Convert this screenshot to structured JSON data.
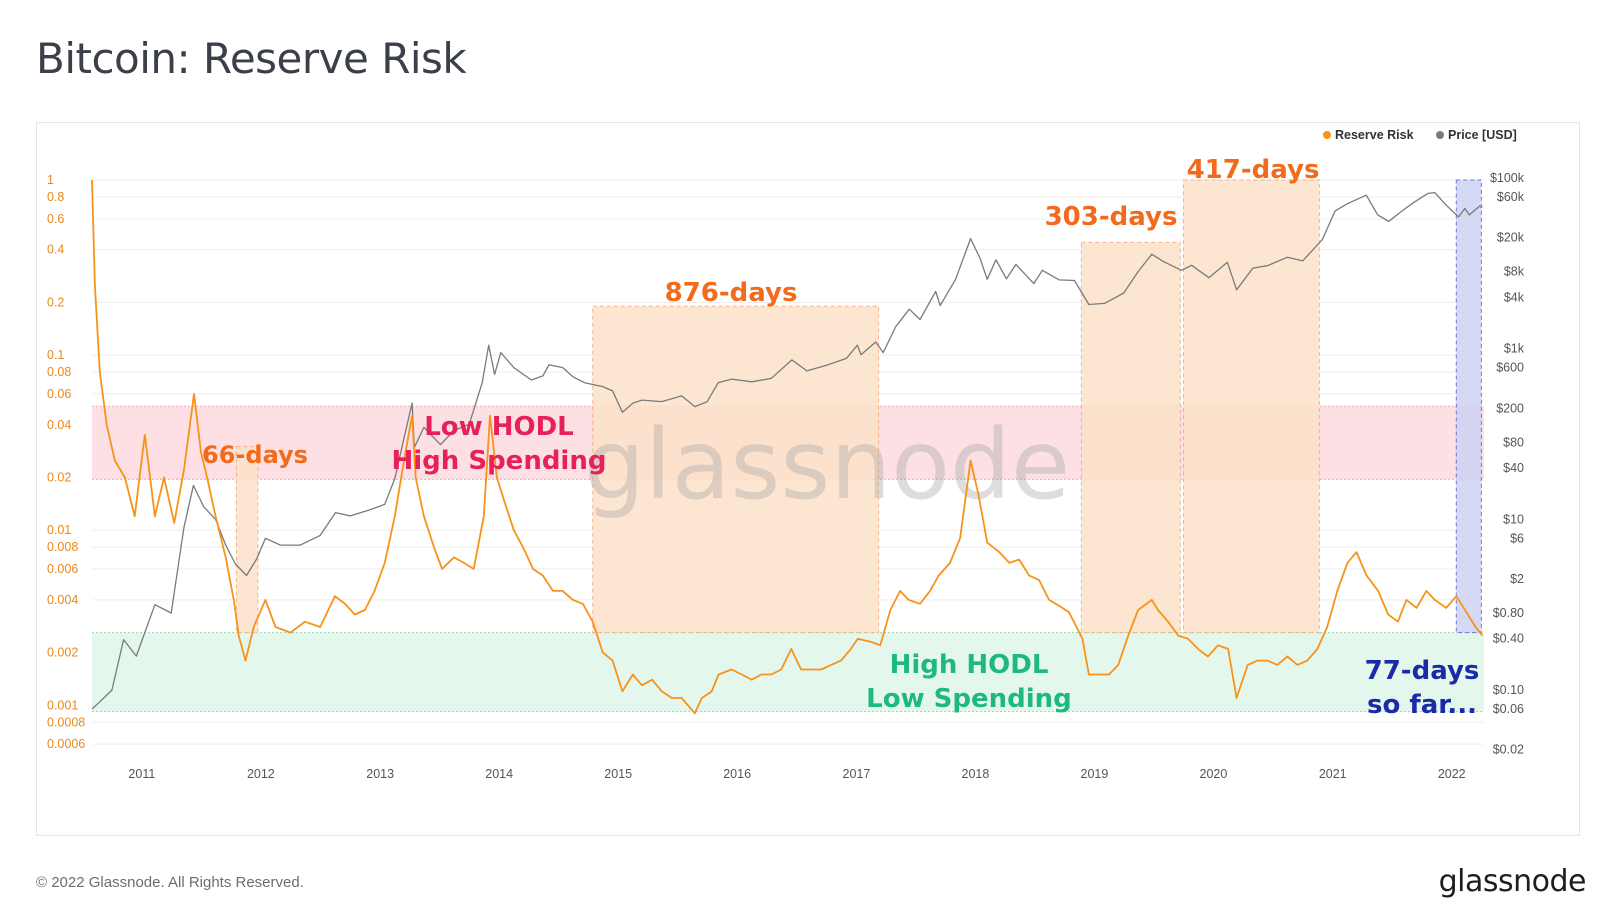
{
  "page": {
    "title": "Bitcoin: Reserve Risk",
    "copyright": "© 2022 Glassnode. All Rights Reserved.",
    "brand": "glassnode",
    "watermark": "glassnode"
  },
  "colors": {
    "reserve_risk": "#f7931a",
    "price": "#7a7a7a",
    "label_orange": "#f26a1b",
    "label_pink": "#e8205a",
    "label_green": "#1db97e",
    "label_blue": "#1b2aa6",
    "band_red": "#fbdadf",
    "band_green": "#dff6ea",
    "box_orange": "#fde2c9",
    "box_blue": "#cfd3f5"
  },
  "chart_data": {
    "type": "line",
    "title": "Bitcoin: Reserve Risk",
    "x_range": [
      "2010-08-01",
      "2022-04-10"
    ],
    "x_ticks": [
      "2011",
      "2012",
      "2013",
      "2014",
      "2015",
      "2016",
      "2017",
      "2018",
      "2019",
      "2020",
      "2021",
      "2022"
    ],
    "y_left": {
      "scale": "log",
      "range": [
        0.0005,
        1.25
      ],
      "tick_values": [
        1,
        0.8,
        0.6,
        0.4,
        0.2,
        0.1,
        0.08,
        0.06,
        0.04,
        0.02,
        0.01,
        0.008,
        0.006,
        0.004,
        0.002,
        0.001,
        0.0008,
        0.0006
      ],
      "tick_labels": [
        "1",
        "0.8",
        "0.6",
        "0.4",
        "0.2",
        "0.1",
        "0.08",
        "0.06",
        "0.04",
        "0.02",
        "0.01",
        "0.008",
        "0.006",
        "0.004",
        "0.002",
        "0.001",
        "0.0008",
        "0.0006"
      ]
    },
    "y_right": {
      "scale": "log",
      "range": [
        0.016,
        150000
      ],
      "tick_values": [
        100000,
        60000,
        20000,
        8000,
        4000,
        1000,
        600,
        200,
        80,
        40,
        10,
        6,
        2,
        0.8,
        0.4,
        0.1,
        0.06,
        0.02
      ],
      "tick_labels": [
        "$100k",
        "$60k",
        "$20k",
        "$8k",
        "$4k",
        "$1k",
        "$600",
        "$200",
        "$80",
        "$40",
        "$10",
        "$6",
        "$2",
        "$0.80",
        "$0.40",
        "$0.10",
        "$0.06",
        "$0.02"
      ]
    },
    "legend": {
      "position": "top-right",
      "entries": [
        {
          "name": "Reserve Risk",
          "color": "#f7931a"
        },
        {
          "name": "Price [USD]",
          "color": "#7a7a7a"
        }
      ]
    },
    "series": [
      {
        "name": "Reserve Risk",
        "axis": "left",
        "x": [
          "2010-08-01",
          "2010-08-10",
          "2010-08-25",
          "2010-09-15",
          "2010-10-10",
          "2010-11-10",
          "2010-12-10",
          "2011-01-10",
          "2011-02-10",
          "2011-03-10",
          "2011-04-10",
          "2011-05-10",
          "2011-06-01",
          "2011-06-10",
          "2011-07-01",
          "2011-07-20",
          "2011-08-15",
          "2011-09-15",
          "2011-10-10",
          "2011-10-25",
          "2011-11-15",
          "2011-12-10",
          "2012-01-15",
          "2012-02-15",
          "2012-04-01",
          "2012-05-15",
          "2012-07-01",
          "2012-08-15",
          "2012-09-15",
          "2012-10-15",
          "2012-11-15",
          "2012-12-15",
          "2013-01-15",
          "2013-02-15",
          "2013-03-15",
          "2013-04-09",
          "2013-04-20",
          "2013-05-15",
          "2013-06-15",
          "2013-07-10",
          "2013-08-15",
          "2013-09-15",
          "2013-10-15",
          "2013-11-15",
          "2013-12-04",
          "2013-12-25",
          "2014-01-15",
          "2014-02-15",
          "2014-03-15",
          "2014-04-15",
          "2014-05-15",
          "2014-06-15",
          "2014-07-15",
          "2014-08-15",
          "2014-09-15",
          "2014-10-15",
          "2014-11-15",
          "2014-12-15",
          "2015-01-14",
          "2015-02-15",
          "2015-03-15",
          "2015-04-15",
          "2015-05-15",
          "2015-06-15",
          "2015-07-15",
          "2015-08-24",
          "2015-09-15",
          "2015-10-15",
          "2015-11-05",
          "2015-12-15",
          "2016-01-15",
          "2016-02-15",
          "2016-03-15",
          "2016-04-15",
          "2016-05-15",
          "2016-06-15",
          "2016-07-15",
          "2016-08-15",
          "2016-09-15",
          "2016-10-15",
          "2016-11-15",
          "2016-12-15",
          "2017-01-05",
          "2017-02-15",
          "2017-03-15",
          "2017-04-15",
          "2017-05-15",
          "2017-06-10",
          "2017-07-15",
          "2017-08-15",
          "2017-09-10",
          "2017-10-15",
          "2017-11-15",
          "2017-12-17",
          "2018-01-10",
          "2018-02-06",
          "2018-03-15",
          "2018-04-15",
          "2018-05-15",
          "2018-06-15",
          "2018-07-15",
          "2018-08-15",
          "2018-09-15",
          "2018-10-15",
          "2018-11-25",
          "2018-12-15",
          "2019-01-15",
          "2019-02-15",
          "2019-03-15",
          "2019-04-15",
          "2019-05-15",
          "2019-06-26",
          "2019-07-15",
          "2019-08-15",
          "2019-09-15",
          "2019-10-15",
          "2019-11-15",
          "2019-12-15",
          "2020-01-15",
          "2020-02-15",
          "2020-03-12",
          "2020-04-15",
          "2020-05-15",
          "2020-06-15",
          "2020-07-15",
          "2020-08-15",
          "2020-09-15",
          "2020-10-15",
          "2020-11-15",
          "2020-12-15",
          "2021-01-15",
          "2021-02-15",
          "2021-03-15",
          "2021-04-15",
          "2021-05-20",
          "2021-06-20",
          "2021-07-20",
          "2021-08-15",
          "2021-09-15",
          "2021-10-15",
          "2021-11-10",
          "2021-12-15",
          "2022-01-15",
          "2022-02-15",
          "2022-03-15",
          "2022-04-05"
        ],
        "y": [
          1.0,
          0.25,
          0.08,
          0.04,
          0.025,
          0.02,
          0.012,
          0.035,
          0.012,
          0.02,
          0.011,
          0.022,
          0.045,
          0.06,
          0.028,
          0.02,
          0.012,
          0.007,
          0.004,
          0.0025,
          0.0018,
          0.0028,
          0.004,
          0.0028,
          0.0026,
          0.003,
          0.0028,
          0.0042,
          0.0038,
          0.0033,
          0.0035,
          0.0045,
          0.0065,
          0.012,
          0.025,
          0.045,
          0.02,
          0.012,
          0.008,
          0.006,
          0.007,
          0.0065,
          0.006,
          0.012,
          0.045,
          0.02,
          0.015,
          0.01,
          0.008,
          0.006,
          0.0055,
          0.0045,
          0.0045,
          0.004,
          0.0038,
          0.003,
          0.002,
          0.0018,
          0.0012,
          0.0015,
          0.0013,
          0.0014,
          0.0012,
          0.0011,
          0.0011,
          0.0009,
          0.0011,
          0.0012,
          0.0015,
          0.0016,
          0.0015,
          0.0014,
          0.0015,
          0.0015,
          0.0016,
          0.0021,
          0.0016,
          0.0016,
          0.0016,
          0.0017,
          0.0018,
          0.0021,
          0.0024,
          0.0023,
          0.0022,
          0.0035,
          0.0045,
          0.004,
          0.0038,
          0.0045,
          0.0055,
          0.0065,
          0.009,
          0.025,
          0.016,
          0.0085,
          0.0075,
          0.0065,
          0.0068,
          0.0055,
          0.0052,
          0.004,
          0.0037,
          0.0034,
          0.0024,
          0.0015,
          0.0015,
          0.0015,
          0.0017,
          0.0025,
          0.0035,
          0.004,
          0.0035,
          0.003,
          0.0025,
          0.0024,
          0.0021,
          0.0019,
          0.0022,
          0.0021,
          0.0011,
          0.0017,
          0.0018,
          0.0018,
          0.0017,
          0.0019,
          0.0017,
          0.0018,
          0.0021,
          0.0028,
          0.0045,
          0.0065,
          0.0075,
          0.0055,
          0.0045,
          0.0033,
          0.003,
          0.004,
          0.0036,
          0.0045,
          0.004,
          0.0036,
          0.0042,
          0.0034,
          0.0028,
          0.0025
        ]
      },
      {
        "name": "Price [USD]",
        "axis": "right",
        "x": [
          "2010-08-01",
          "2010-08-20",
          "2010-10-01",
          "2010-11-06",
          "2010-12-15",
          "2011-02-10",
          "2011-04-01",
          "2011-05-10",
          "2011-06-08",
          "2011-07-10",
          "2011-08-15",
          "2011-09-15",
          "2011-10-15",
          "2011-11-18",
          "2011-12-20",
          "2012-01-15",
          "2012-03-01",
          "2012-05-01",
          "2012-07-01",
          "2012-08-17",
          "2012-10-01",
          "2012-12-01",
          "2013-01-15",
          "2013-02-15",
          "2013-03-15",
          "2013-04-09",
          "2013-04-16",
          "2013-05-15",
          "2013-07-05",
          "2013-08-15",
          "2013-10-01",
          "2013-11-10",
          "2013-11-30",
          "2013-12-18",
          "2014-01-06",
          "2014-02-15",
          "2014-04-10",
          "2014-05-15",
          "2014-06-03",
          "2014-07-15",
          "2014-08-15",
          "2014-09-20",
          "2014-11-15",
          "2014-12-15",
          "2015-01-14",
          "2015-02-15",
          "2015-03-15",
          "2015-05-15",
          "2015-07-15",
          "2015-08-24",
          "2015-10-01",
          "2015-11-04",
          "2015-12-15",
          "2016-02-15",
          "2016-04-15",
          "2016-06-17",
          "2016-08-02",
          "2016-10-01",
          "2016-12-01",
          "2017-01-04",
          "2017-01-15",
          "2017-03-01",
          "2017-03-24",
          "2017-05-01",
          "2017-06-12",
          "2017-07-15",
          "2017-09-01",
          "2017-09-15",
          "2017-11-01",
          "2017-12-17",
          "2018-01-15",
          "2018-02-06",
          "2018-03-05",
          "2018-04-06",
          "2018-05-05",
          "2018-06-29",
          "2018-07-25",
          "2018-09-15",
          "2018-11-01",
          "2018-12-15",
          "2019-02-01",
          "2019-04-01",
          "2019-05-15",
          "2019-06-26",
          "2019-08-01",
          "2019-09-25",
          "2019-10-26",
          "2019-12-18",
          "2020-02-13",
          "2020-03-12",
          "2020-05-01",
          "2020-06-15",
          "2020-08-15",
          "2020-10-01",
          "2020-11-30",
          "2021-01-08",
          "2021-02-15",
          "2021-04-14",
          "2021-05-19",
          "2021-06-22",
          "2021-08-01",
          "2021-09-07",
          "2021-10-20",
          "2021-11-10",
          "2021-12-15",
          "2022-01-22",
          "2022-02-10",
          "2022-02-24",
          "2022-03-28",
          "2022-04-05"
        ],
        "y": [
          0.06,
          0.07,
          0.1,
          0.39,
          0.25,
          1,
          0.8,
          8,
          25,
          14,
          10,
          5,
          3,
          2.2,
          3.5,
          6,
          5,
          5,
          6.5,
          12,
          11,
          13,
          15,
          30,
          90,
          230,
          70,
          120,
          75,
          110,
          130,
          400,
          1100,
          500,
          900,
          600,
          430,
          480,
          650,
          600,
          470,
          400,
          360,
          320,
          180,
          230,
          250,
          240,
          280,
          210,
          240,
          400,
          440,
          410,
          450,
          740,
          550,
          640,
          770,
          1100,
          850,
          1200,
          900,
          1800,
          2900,
          2200,
          4700,
          3200,
          6500,
          19500,
          11500,
          6500,
          11000,
          6600,
          9700,
          5800,
          8300,
          6400,
          6300,
          3300,
          3400,
          4500,
          8000,
          12800,
          10500,
          8300,
          9500,
          6800,
          10300,
          4900,
          8800,
          9400,
          11800,
          10700,
          19000,
          41000,
          50000,
          63000,
          37000,
          31000,
          41000,
          52000,
          66000,
          67500,
          48000,
          35000,
          44000,
          37000,
          47000,
          45000
        ]
      }
    ],
    "annotations": {
      "bands": [
        {
          "name": "Low HODL High Spending",
          "axis": "left",
          "y_from": 0.0195,
          "y_to": 0.051
        },
        {
          "name": "High HODL Low Spending",
          "axis": "left",
          "y_from": 0.00092,
          "y_to": 0.0026
        }
      ],
      "boxes": [
        {
          "label": "66-days",
          "x_from": "2011-10-18",
          "x_to": "2011-12-23",
          "y_top": 0.03
        },
        {
          "label": "876-days",
          "x_from": "2014-10-15",
          "x_to": "2017-03-10",
          "y_top": 0.19
        },
        {
          "label": "303-days",
          "x_from": "2018-11-22",
          "x_to": "2019-09-21",
          "y_top": 0.44
        },
        {
          "label": "417-days",
          "x_from": "2019-10-01",
          "x_to": "2020-11-21",
          "y_top": 1.0
        },
        {
          "label": "77-days so far...",
          "x_from": "2022-01-15",
          "x_to": "2022-04-02",
          "y_top": 1.0
        }
      ],
      "texts": [
        {
          "key": "label_66",
          "text": "66-days",
          "color": "label_orange"
        },
        {
          "key": "label_876",
          "text": "876-days",
          "color": "label_orange"
        },
        {
          "key": "label_303",
          "text": "303-days",
          "color": "label_orange"
        },
        {
          "key": "label_417",
          "text": "417-days",
          "color": "label_orange"
        },
        {
          "key": "label_low1",
          "text": "Low HODL",
          "color": "label_pink"
        },
        {
          "key": "label_low2",
          "text": "High Spending",
          "color": "label_pink"
        },
        {
          "key": "label_high1",
          "text": "High HODL",
          "color": "label_green"
        },
        {
          "key": "label_high2",
          "text": "Low Spending",
          "color": "label_green"
        },
        {
          "key": "label_77a",
          "text": "77-days",
          "color": "label_blue"
        },
        {
          "key": "label_77b",
          "text": "so far...",
          "color": "label_blue"
        }
      ]
    }
  }
}
